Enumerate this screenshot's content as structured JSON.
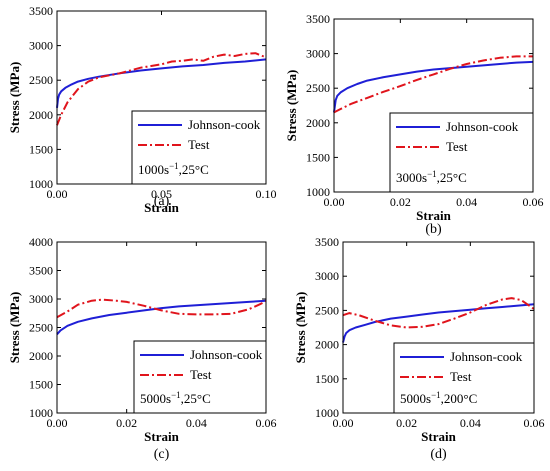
{
  "chart_data": [
    {
      "type": "line",
      "caption": "(a)",
      "xlabel": "Strain",
      "ylabel": "Stress (MPa)",
      "xlim": [
        0,
        0.1
      ],
      "ylim": [
        1000,
        3500
      ],
      "xticks": [
        0.0,
        0.05,
        0.1
      ],
      "xticklabels": [
        "0.00",
        "0.05",
        "0.10"
      ],
      "yticks": [
        1000,
        1500,
        2000,
        2500,
        3000,
        3500
      ],
      "yticklabels": [
        "1000",
        "1500",
        "2000",
        "2500",
        "3000",
        "3500"
      ],
      "legend_loc": "lower-right",
      "condition": {
        "rate": "1000",
        "unit": "s",
        "exp": "−1",
        "temp": ",25°C"
      },
      "series": [
        {
          "name": "Johnson-cook",
          "style": "solid",
          "color": "#1f1fd6",
          "x": [
            0.0,
            0.0005,
            0.001,
            0.002,
            0.004,
            0.007,
            0.01,
            0.015,
            0.02,
            0.03,
            0.04,
            0.05,
            0.06,
            0.07,
            0.08,
            0.09,
            0.1
          ],
          "y": [
            2100,
            2230,
            2290,
            2340,
            2390,
            2440,
            2480,
            2520,
            2550,
            2600,
            2640,
            2670,
            2700,
            2720,
            2750,
            2770,
            2800
          ]
        },
        {
          "name": "Test",
          "style": "dashdot",
          "color": "#e0141c",
          "x": [
            0.0,
            0.002,
            0.005,
            0.01,
            0.015,
            0.02,
            0.03,
            0.04,
            0.05,
            0.055,
            0.06,
            0.065,
            0.07,
            0.075,
            0.08,
            0.085,
            0.09,
            0.095,
            0.1
          ],
          "y": [
            1850,
            2000,
            2180,
            2370,
            2480,
            2540,
            2600,
            2680,
            2730,
            2770,
            2780,
            2800,
            2780,
            2840,
            2870,
            2850,
            2880,
            2890,
            2830
          ]
        }
      ]
    },
    {
      "type": "line",
      "caption": "(b)",
      "xlabel": "Strain",
      "ylabel": "Stress (MPa)",
      "xlim": [
        0,
        0.06
      ],
      "ylim": [
        1000,
        3500
      ],
      "xticks": [
        0.0,
        0.02,
        0.04,
        0.06
      ],
      "xticklabels": [
        "0.00",
        "0.02",
        "0.04",
        "0.06"
      ],
      "yticks": [
        1000,
        1500,
        2000,
        2500,
        3000,
        3500
      ],
      "yticklabels": [
        "1000",
        "1500",
        "2000",
        "2500",
        "3000",
        "3500"
      ],
      "legend_loc": "lower-right",
      "condition": {
        "rate": "3000",
        "unit": "s",
        "exp": "−1",
        "temp": ",25°C"
      },
      "series": [
        {
          "name": "Johnson-cook",
          "style": "solid",
          "color": "#1f1fd6",
          "x": [
            0.0,
            0.0005,
            0.001,
            0.002,
            0.004,
            0.007,
            0.01,
            0.015,
            0.02,
            0.025,
            0.03,
            0.035,
            0.04,
            0.045,
            0.05,
            0.055,
            0.06
          ],
          "y": [
            2150,
            2330,
            2390,
            2440,
            2500,
            2560,
            2610,
            2660,
            2700,
            2740,
            2770,
            2790,
            2810,
            2830,
            2850,
            2870,
            2880
          ]
        },
        {
          "name": "Test",
          "style": "dashdot",
          "color": "#e0141c",
          "x": [
            0.0,
            0.002,
            0.005,
            0.01,
            0.015,
            0.02,
            0.025,
            0.03,
            0.035,
            0.04,
            0.045,
            0.05,
            0.055,
            0.06
          ],
          "y": [
            2150,
            2200,
            2270,
            2360,
            2450,
            2530,
            2620,
            2700,
            2780,
            2850,
            2900,
            2940,
            2960,
            2960
          ]
        }
      ]
    },
    {
      "type": "line",
      "caption": "(c)",
      "xlabel": "Strain",
      "ylabel": "Stress (MPa)",
      "xlim": [
        0,
        0.06
      ],
      "ylim": [
        1000,
        4000
      ],
      "xticks": [
        0.0,
        0.02,
        0.04,
        0.06
      ],
      "xticklabels": [
        "0.00",
        "0.02",
        "0.04",
        "0.06"
      ],
      "yticks": [
        1000,
        1500,
        2000,
        2500,
        3000,
        3500,
        4000
      ],
      "yticklabels": [
        "1000",
        "1500",
        "2000",
        "2500",
        "3000",
        "3500",
        "4000"
      ],
      "legend_loc": "lower-right",
      "condition": {
        "rate": "5000",
        "unit": "s",
        "exp": "−1",
        "temp": ",25°C"
      },
      "series": [
        {
          "name": "Johnson-cook",
          "style": "solid",
          "color": "#1f1fd6",
          "x": [
            0.0,
            0.001,
            0.003,
            0.006,
            0.01,
            0.015,
            0.02,
            0.025,
            0.03,
            0.035,
            0.04,
            0.045,
            0.05,
            0.055,
            0.06
          ],
          "y": [
            2380,
            2450,
            2530,
            2600,
            2660,
            2720,
            2760,
            2800,
            2840,
            2870,
            2890,
            2910,
            2930,
            2950,
            2970
          ]
        },
        {
          "name": "Test",
          "style": "dashdot",
          "color": "#e0141c",
          "x": [
            0.0,
            0.003,
            0.006,
            0.01,
            0.013,
            0.017,
            0.02,
            0.025,
            0.03,
            0.035,
            0.04,
            0.045,
            0.05,
            0.055,
            0.058,
            0.06
          ],
          "y": [
            2680,
            2780,
            2900,
            2970,
            2990,
            2970,
            2950,
            2880,
            2800,
            2740,
            2730,
            2730,
            2740,
            2820,
            2900,
            2960
          ]
        }
      ]
    },
    {
      "type": "line",
      "caption": "(d)",
      "xlabel": "Strain",
      "ylabel": "Stress (MPa)",
      "xlim": [
        0,
        0.06
      ],
      "ylim": [
        1000,
        3500
      ],
      "xticks": [
        0.0,
        0.02,
        0.04,
        0.06
      ],
      "xticklabels": [
        "0.00",
        "0.02",
        "0.04",
        "0.06"
      ],
      "yticks": [
        1000,
        1500,
        2000,
        2500,
        3000,
        3500
      ],
      "yticklabels": [
        "1000",
        "1500",
        "2000",
        "2500",
        "3000",
        "3500"
      ],
      "legend_loc": "lower-right",
      "condition": {
        "rate": "5000",
        "unit": "s",
        "exp": "−1",
        "temp": ",200°C"
      },
      "series": [
        {
          "name": "Johnson-cook",
          "style": "solid",
          "color": "#1f1fd6",
          "x": [
            0.0,
            0.0005,
            0.001,
            0.002,
            0.004,
            0.007,
            0.01,
            0.015,
            0.02,
            0.025,
            0.03,
            0.035,
            0.04,
            0.045,
            0.05,
            0.055,
            0.06
          ],
          "y": [
            2030,
            2120,
            2170,
            2210,
            2250,
            2290,
            2330,
            2380,
            2410,
            2440,
            2470,
            2490,
            2510,
            2530,
            2550,
            2570,
            2590
          ]
        },
        {
          "name": "Test",
          "style": "dashdot",
          "color": "#e0141c",
          "x": [
            0.0,
            0.002,
            0.005,
            0.01,
            0.015,
            0.02,
            0.025,
            0.03,
            0.035,
            0.04,
            0.045,
            0.05,
            0.053,
            0.056,
            0.06
          ],
          "y": [
            2430,
            2460,
            2430,
            2350,
            2280,
            2250,
            2260,
            2300,
            2380,
            2470,
            2580,
            2660,
            2680,
            2650,
            2520
          ]
        }
      ]
    }
  ]
}
